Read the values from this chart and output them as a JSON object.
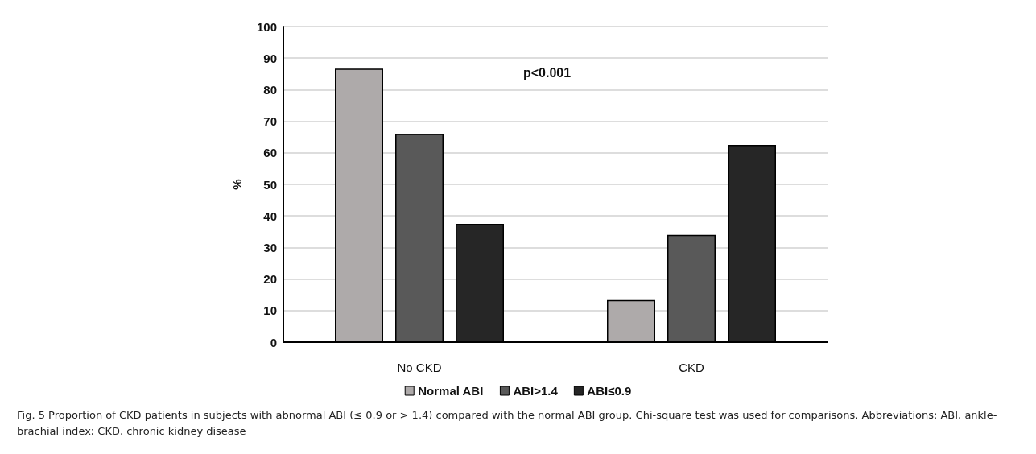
{
  "chart_data": {
    "type": "bar",
    "categories": [
      "No CKD",
      "CKD"
    ],
    "series": [
      {
        "name": "Normal ABI",
        "color": "#aeaaaa",
        "values": [
          86.7,
          13.3
        ]
      },
      {
        "name": "ABI>1.4",
        "color": "#595959",
        "values": [
          66,
          34
        ]
      },
      {
        "name": "ABI≤0.9",
        "color": "#262626",
        "values": [
          37.5,
          62.5
        ]
      }
    ],
    "ylabel": "%",
    "ylim": [
      0,
      100
    ],
    "yticks": [
      0,
      10,
      20,
      30,
      40,
      50,
      60,
      70,
      80,
      90,
      100
    ],
    "grid": "y",
    "legend": "bottom",
    "annotations": [
      "p<0.001",
      "Fig. 5  Proportion of CKD patients in subjects with abnormal ABI (≤ 0.9 or > 1.4) compared with the normal ABI group. Chi-square test was used for comparisons. Abbreviations: ABI, ankle-brachial index; CKD, chronic kidney disease"
    ]
  }
}
